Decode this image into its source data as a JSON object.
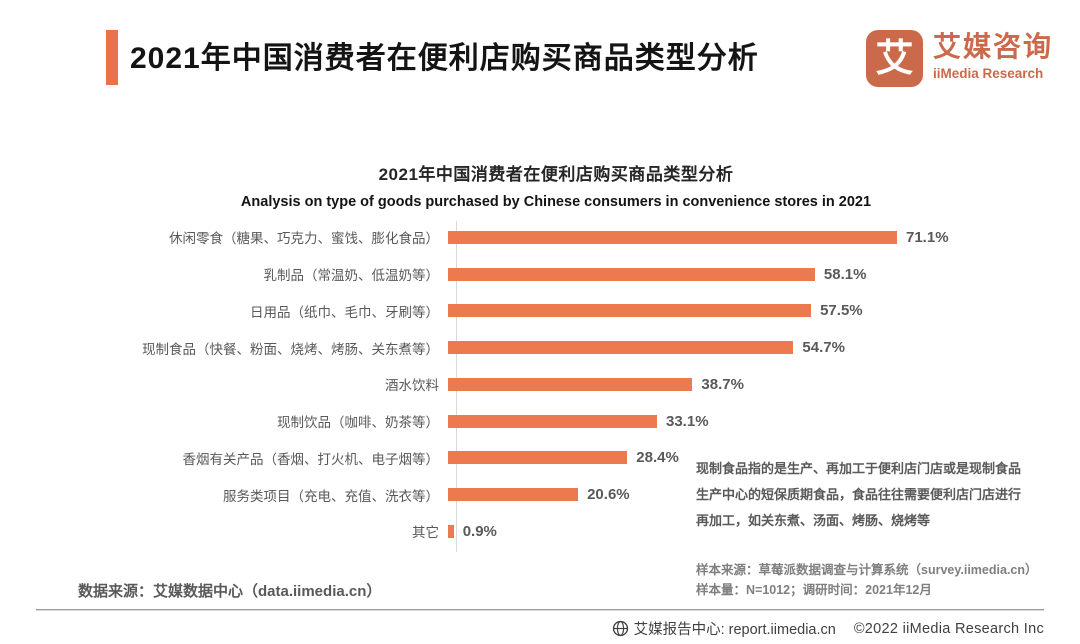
{
  "header": {
    "title": "2021年中国消费者在便利店购买商品类型分析",
    "logo": {
      "glyph": "艾",
      "brand_cn": "艾媒咨询",
      "brand_en": "iiMedia Research"
    }
  },
  "chart": {
    "title": "2021年中国消费者在便利店购买商品类型分析",
    "subtitle": "Analysis on type of goods purchased by Chinese consumers in convenience stores in 2021"
  },
  "chart_data": {
    "type": "bar",
    "orientation": "horizontal",
    "title": "2021年中国消费者在便利店购买商品类型分析",
    "subtitle": "Analysis on type of goods purchased by Chinese consumers in convenience stores in 2021",
    "categories": [
      "休闲零食（糖果、巧克力、蜜饯、膨化食品）",
      "乳制品（常温奶、低温奶等）",
      "日用品（纸巾、毛巾、牙刷等）",
      "现制食品（快餐、粉面、烧烤、烤肠、关东煮等）",
      "酒水饮料",
      "现制饮品（咖啡、奶茶等）",
      "香烟有关产品（香烟、打火机、电子烟等）",
      "服务类项目（充电、充值、洗衣等）",
      "其它"
    ],
    "values": [
      71.1,
      58.1,
      57.5,
      54.7,
      38.7,
      33.1,
      28.4,
      20.6,
      0.9
    ],
    "value_labels": [
      "71.1%",
      "58.1%",
      "57.5%",
      "54.7%",
      "38.7%",
      "33.1%",
      "28.4%",
      "20.6%",
      "0.9%"
    ],
    "xlim": [
      0,
      80
    ],
    "unit": "%",
    "grid": false,
    "legend": false,
    "bar_color": "#ED7A4F"
  },
  "annotation": "现制食品指的是生产、再加工于便利店门店或是现制食品生产中心的短保质期食品，食品往往需要便利店门店进行再加工，如关东煮、汤面、烤肠、烧烤等",
  "sample_source": {
    "line1": "样本来源：草莓派数据调查与计算系统（survey.iimedia.cn）",
    "line2": "样本量：N=1012；调研时间：2021年12月"
  },
  "data_source": "数据来源：艾媒数据中心（data.iimedia.cn）",
  "footer": {
    "report_center": "艾媒报告中心: report.iimedia.cn",
    "copyright": "©2022  iiMedia Research Inc"
  },
  "colors": {
    "accent_orange": "#EA714B",
    "bar_orange": "#ED7A4F",
    "logo_orange": "#CA6A4B",
    "axis_gray": "#D9D9D9",
    "label_gray": "#595959"
  }
}
